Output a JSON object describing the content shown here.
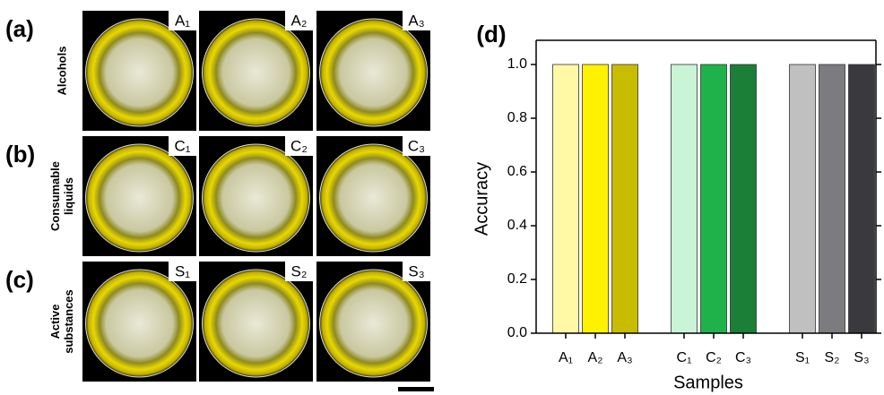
{
  "panels": [
    {
      "label": "(a)",
      "row_label": [
        "Alcohols"
      ],
      "images": [
        "A₁",
        "A₂",
        "A₃"
      ]
    },
    {
      "label": "(b)",
      "row_label": [
        "Consumable",
        "liquids"
      ],
      "images": [
        "C₁",
        "C₂",
        "C₃"
      ]
    },
    {
      "label": "(c)",
      "row_label": [
        "Active",
        "substances"
      ],
      "images": [
        "S₁",
        "S₂",
        "S₃"
      ]
    }
  ],
  "chart_data": {
    "type": "bar",
    "panel_label": "(d)",
    "x_label": "Samples",
    "y_label": "Accuracy",
    "categories": [
      "A₁",
      "A₂",
      "A₃",
      null,
      "C₁",
      "C₂",
      "C₃",
      null,
      "S₁",
      "S₂",
      "S₃"
    ],
    "values": [
      1.0,
      1.0,
      1.0,
      null,
      1.0,
      1.0,
      1.0,
      null,
      1.0,
      1.0,
      1.0
    ],
    "colors": [
      "#fff9a6",
      "#fff200",
      "#c8bc00",
      null,
      "#c9f4d6",
      "#1fb24a",
      "#1b7f38",
      null,
      "#c0c0c0",
      "#7c7c80",
      "#3a3a3e"
    ],
    "ylim": [
      0,
      1.09
    ],
    "yticks": [
      {
        "value": 0,
        "label": "0.0"
      },
      {
        "value": 0.2,
        "label": "0.2"
      },
      {
        "value": 0.4,
        "label": "0.4"
      },
      {
        "value": 0.6,
        "label": "0.6"
      },
      {
        "value": 0.8,
        "label": "0.8"
      },
      {
        "value": 1.0,
        "label": "1.0"
      }
    ]
  }
}
